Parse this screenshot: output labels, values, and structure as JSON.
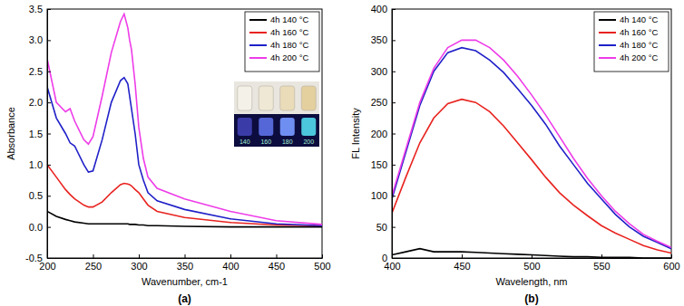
{
  "chart_data": [
    {
      "type": "line",
      "title": "(a)",
      "x_label": "Wavenumber, cm-1",
      "y_label": "Absorbance",
      "x": [
        200,
        210,
        220,
        225,
        230,
        240,
        245,
        250,
        260,
        270,
        280,
        284,
        288,
        290,
        292,
        296,
        300,
        305,
        310,
        320,
        350,
        400,
        450,
        500
      ],
      "series": [
        {
          "name": "4h 140 °C",
          "color": "#000000",
          "values": [
            0.25,
            0.17,
            0.12,
            0.1,
            0.08,
            0.06,
            0.05,
            0.05,
            0.05,
            0.05,
            0.05,
            0.05,
            0.05,
            0.04,
            0.04,
            0.04,
            0.03,
            0.03,
            0.02,
            0.02,
            0.01,
            0,
            0,
            0
          ]
        },
        {
          "name": "4h 160 °C",
          "color": "#e8231f",
          "values": [
            1.0,
            0.8,
            0.6,
            0.52,
            0.45,
            0.35,
            0.32,
            0.32,
            0.4,
            0.55,
            0.68,
            0.7,
            0.69,
            0.68,
            0.66,
            0.6,
            0.55,
            0.45,
            0.35,
            0.25,
            0.15,
            0.07,
            0.03,
            0.02
          ]
        },
        {
          "name": "4h 180 °C",
          "color": "#2020c8",
          "values": [
            2.25,
            1.75,
            1.5,
            1.35,
            1.3,
            1.0,
            0.88,
            0.9,
            1.4,
            2.0,
            2.35,
            2.4,
            2.3,
            2.1,
            1.9,
            1.5,
            1.0,
            0.75,
            0.55,
            0.42,
            0.28,
            0.13,
            0.05,
            0.02
          ]
        },
        {
          "name": "4h 200 °C",
          "color": "#ee3ce8",
          "values": [
            2.7,
            2.0,
            1.85,
            1.9,
            1.7,
            1.4,
            1.33,
            1.45,
            2.1,
            2.8,
            3.3,
            3.42,
            3.2,
            3.0,
            2.85,
            2.3,
            1.6,
            1.1,
            0.8,
            0.62,
            0.45,
            0.25,
            0.1,
            0.04
          ]
        }
      ],
      "xlim": [
        200,
        500
      ],
      "xticks": [
        200,
        250,
        300,
        350,
        400,
        450,
        500
      ],
      "ylim": [
        -0.5,
        3.5
      ],
      "yticks": [
        {
          "value": -0.5,
          "label": "-0.5"
        },
        {
          "value": 0,
          "label": "0.0"
        },
        {
          "value": 0.5,
          "label": "0.5"
        },
        {
          "value": 1,
          "label": "1.0"
        },
        {
          "value": 1.5,
          "label": "1.5"
        },
        {
          "value": 2,
          "label": "2.0"
        },
        {
          "value": 2.5,
          "label": "2.5"
        },
        {
          "value": 3,
          "label": "3.0"
        },
        {
          "value": 3.5,
          "label": "3.5"
        }
      ],
      "grid": false,
      "legend": "upper right",
      "annotations": [
        "140",
        "160",
        "180",
        "200"
      ]
    },
    {
      "type": "line",
      "title": "(b)",
      "x_label": "Wavelength, nm",
      "y_label": "FL Intensity",
      "x": [
        400,
        410,
        420,
        430,
        440,
        450,
        460,
        470,
        480,
        490,
        500,
        510,
        520,
        530,
        540,
        550,
        560,
        570,
        580,
        590,
        600
      ],
      "series": [
        {
          "name": "4h 140 °C",
          "color": "#000000",
          "values": [
            5,
            10,
            15,
            10,
            10,
            10,
            9,
            8,
            7,
            6,
            5,
            4,
            3,
            2,
            2,
            1,
            1,
            1,
            0,
            0,
            0
          ]
        },
        {
          "name": "4h 160 °C",
          "color": "#e8231f",
          "values": [
            72,
            130,
            185,
            225,
            248,
            255,
            250,
            235,
            212,
            185,
            158,
            130,
            105,
            85,
            68,
            52,
            40,
            30,
            20,
            13,
            8
          ]
        },
        {
          "name": "4h 180 °C",
          "color": "#2020c8",
          "values": [
            95,
            170,
            245,
            300,
            330,
            338,
            333,
            318,
            298,
            272,
            245,
            215,
            180,
            150,
            120,
            95,
            70,
            50,
            35,
            25,
            15
          ]
        },
        {
          "name": "4h 200 °C",
          "color": "#ee3ce8",
          "values": [
            100,
            175,
            250,
            305,
            338,
            350,
            350,
            338,
            318,
            292,
            262,
            230,
            195,
            160,
            128,
            100,
            75,
            55,
            38,
            27,
            17
          ]
        }
      ],
      "xlim": [
        400,
        600
      ],
      "xticks": [
        400,
        450,
        500,
        550,
        600
      ],
      "ylim": [
        0,
        400
      ],
      "yticks": [
        0,
        50,
        100,
        150,
        200,
        250,
        300,
        350,
        400
      ],
      "grid": false,
      "legend": "upper right"
    }
  ]
}
